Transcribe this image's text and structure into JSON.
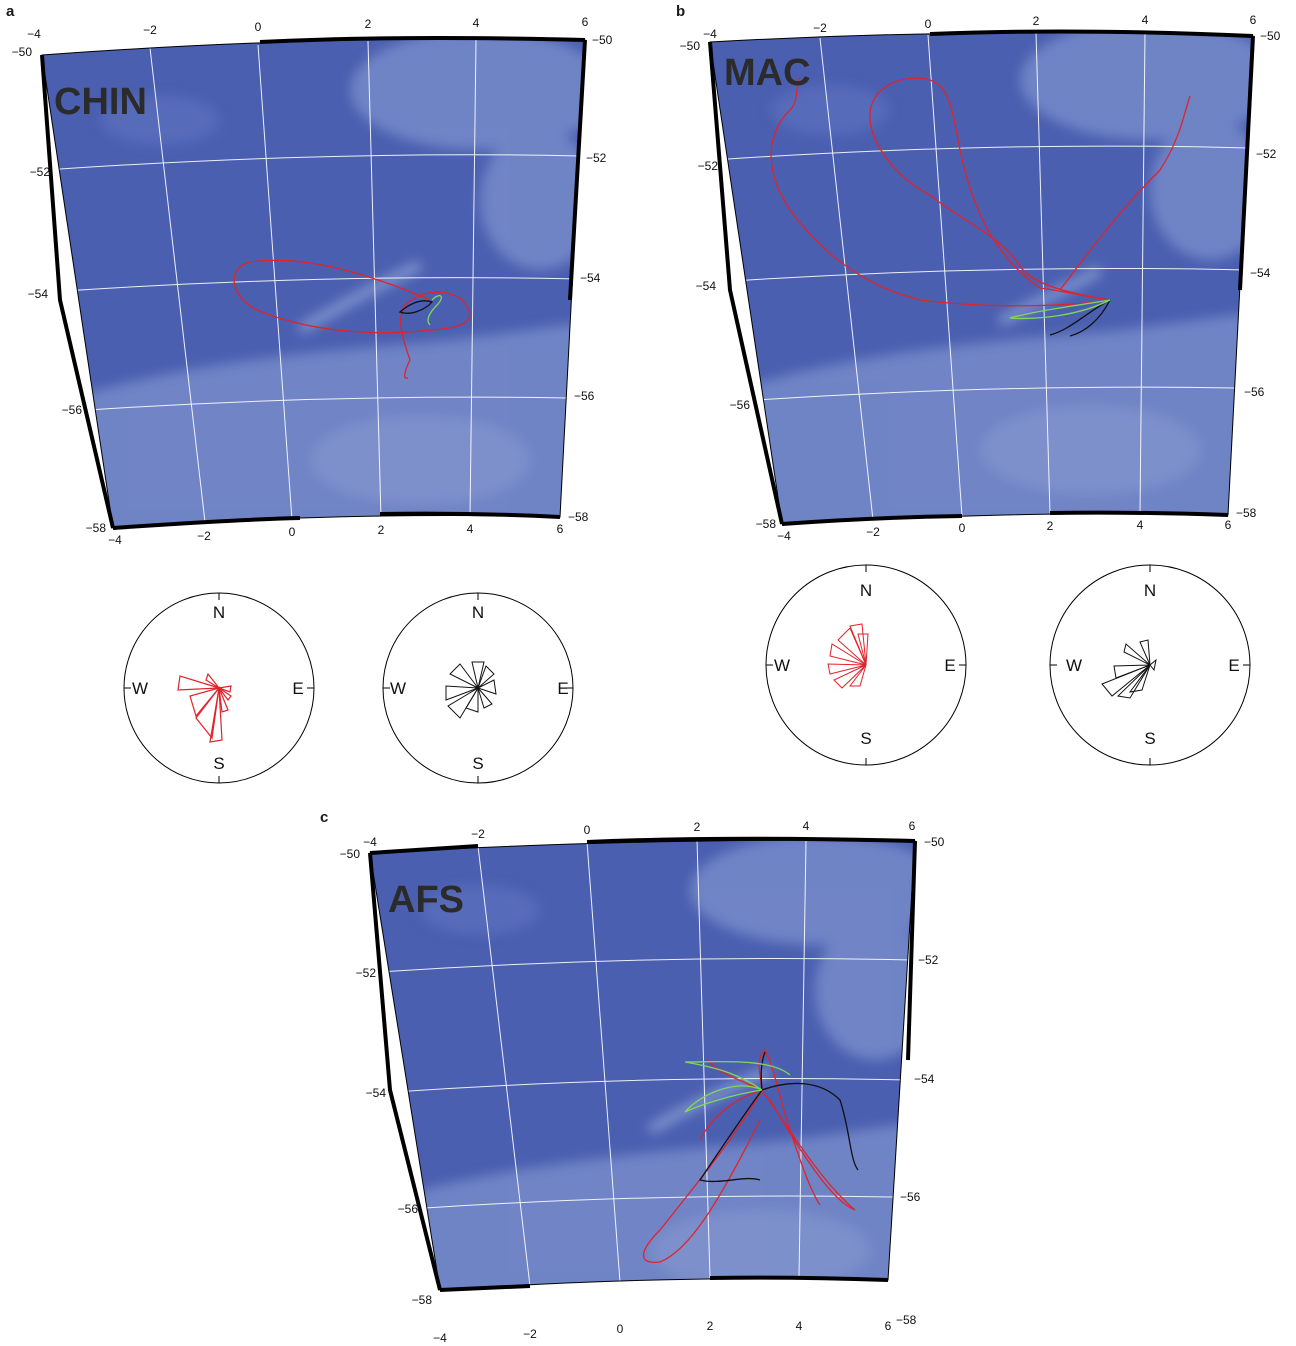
{
  "colors": {
    "ocean": "#4a5fb0",
    "shallow": "#8fa3d8",
    "grid": "#ffffff",
    "frame": "#000000",
    "track_red": "#e0232b",
    "track_black": "#111111",
    "track_green": "#7ed957"
  },
  "panels": [
    {
      "label": "a",
      "title": "CHIN",
      "lon_ticks_top": [
        "−4",
        "−2",
        "0",
        "2",
        "4",
        "6"
      ],
      "lon_ticks_bottom": [
        "−4",
        "−2",
        "0",
        "2",
        "4",
        "6"
      ],
      "lat_ticks_left": [
        "−50",
        "−52",
        "−54",
        "−56",
        "−58"
      ],
      "lat_ticks_right": [
        "−50",
        "−52",
        "−54",
        "−56",
        "−58"
      ]
    },
    {
      "label": "b",
      "title": "MAC",
      "lon_ticks_top": [
        "−4",
        "−2",
        "0",
        "2",
        "4",
        "6"
      ],
      "lon_ticks_bottom": [
        "−4",
        "−2",
        "0",
        "2",
        "4",
        "6"
      ],
      "lat_ticks_left": [
        "−50",
        "−52",
        "−54",
        "−56",
        "−58"
      ],
      "lat_ticks_right": [
        "−50",
        "−52",
        "−54",
        "−56",
        "−58"
      ]
    },
    {
      "label": "c",
      "title": "AFS",
      "lon_ticks_top": [
        "−4",
        "−2",
        "0",
        "2",
        "4",
        "6"
      ],
      "lon_ticks_bottom": [
        "−4",
        "−2",
        "0",
        "2",
        "4",
        "6"
      ],
      "lat_ticks_left": [
        "−50",
        "−52",
        "−54",
        "−56",
        "−58"
      ],
      "lat_ticks_right": [
        "−50",
        "−52",
        "−54",
        "−56",
        "−58"
      ]
    }
  ],
  "compass": {
    "n": "N",
    "e": "E",
    "s": "S",
    "w": "W"
  },
  "roses": [
    {
      "panel": "a",
      "color": "#e0232b",
      "icon": "red-direction-rose"
    },
    {
      "panel": "a",
      "color": "#111111",
      "icon": "black-direction-rose"
    },
    {
      "panel": "b",
      "color": "#e0232b",
      "icon": "red-direction-rose"
    },
    {
      "panel": "b",
      "color": "#111111",
      "icon": "black-direction-rose"
    }
  ]
}
